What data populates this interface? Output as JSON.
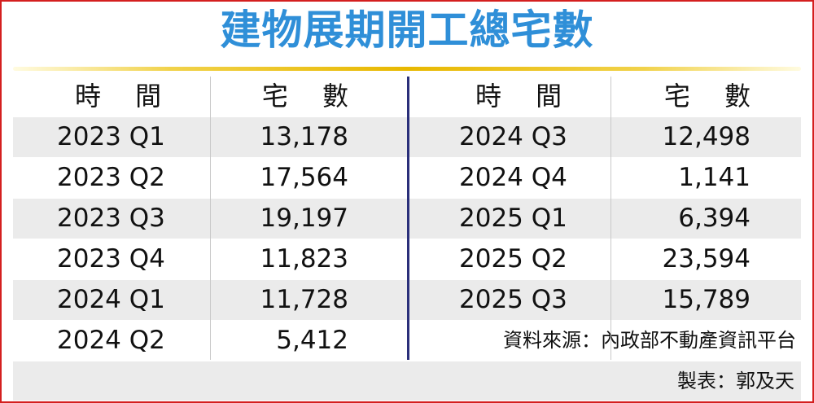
{
  "title": "建物展期開工總宅數",
  "headers": [
    "時 間",
    "宅 數",
    "時 間",
    "宅 數"
  ],
  "left_rows": [
    {
      "period": "2023 Q1",
      "count": "13,178"
    },
    {
      "period": "2023 Q2",
      "count": "17,564"
    },
    {
      "period": "2023 Q3",
      "count": "19,197"
    },
    {
      "period": "2023 Q4",
      "count": "11,823"
    },
    {
      "period": "2024 Q1",
      "count": "11,728"
    },
    {
      "period": "2024 Q2",
      "count": "5,412"
    }
  ],
  "right_rows": [
    {
      "period": "2024 Q3",
      "count": "12,498"
    },
    {
      "period": "2024 Q4",
      "count": "1,141"
    },
    {
      "period": "2025 Q1",
      "count": "6,394"
    },
    {
      "period": "2025 Q2",
      "count": "23,594"
    },
    {
      "period": "2025 Q3",
      "count": "15,789"
    }
  ],
  "source": "資料來源：內政部不動產資訊平台",
  "maker": "製表：郭及天",
  "colors": {
    "title": "#2f8fd8",
    "frame": "#d41f1f",
    "divider": "#2a2f7a",
    "shade": "#ebebeb"
  }
}
